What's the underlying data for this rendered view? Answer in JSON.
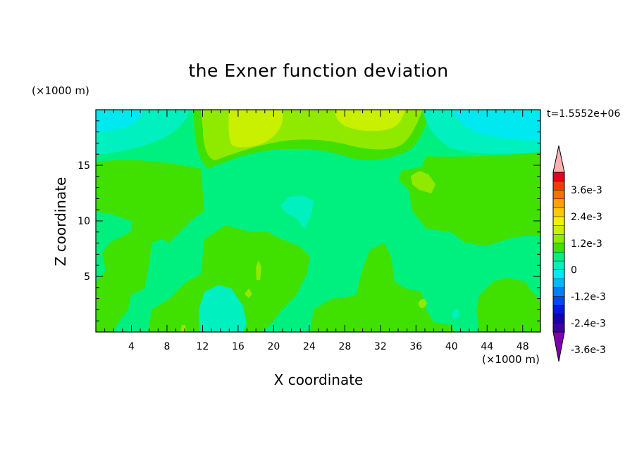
{
  "chart_data": {
    "type": "heatmap",
    "title": "the Exner function deviation",
    "xlabel": "X coordinate",
    "ylabel": "Z coordinate",
    "x_unit": "(×1000 m)",
    "y_unit": "(×1000 m)",
    "time_label": "t=1.5552e+06",
    "xlim": [
      0,
      50
    ],
    "ylim": [
      0,
      20
    ],
    "x_ticks": [
      4,
      8,
      12,
      16,
      20,
      24,
      28,
      32,
      36,
      40,
      44,
      48
    ],
    "y_ticks": [
      5,
      10,
      15
    ],
    "colorbar": {
      "levels": [
        "3.6e-3",
        "2.4e-3",
        "1.2e-3",
        "0",
        "-1.2e-3",
        "-2.4e-3",
        "-3.6e-3"
      ],
      "colors": [
        "#ffb0b0",
        "#e8001e",
        "#f43a00",
        "#f87000",
        "#ffa000",
        "#ffc800",
        "#f0f000",
        "#c8f000",
        "#90ea00",
        "#40e000",
        "#00f080",
        "#00f0c0",
        "#00e8f0",
        "#00b8ff",
        "#0080ff",
        "#0048f0",
        "#0018e0",
        "#1800b0",
        "#3c00a0",
        "#8000b0"
      ]
    },
    "regions": [
      {
        "name": "background",
        "value": -0.0004,
        "color": "#00f080"
      },
      {
        "name": "left-green",
        "value": 0.0003,
        "color": "#40e000"
      },
      {
        "name": "bottom-left-green",
        "value": 0.0003,
        "color": "#40e000"
      },
      {
        "name": "center-green",
        "value": 0.0003,
        "color": "#40e000"
      },
      {
        "name": "right-green",
        "value": 0.0003,
        "color": "#40e000"
      },
      {
        "name": "bottom-right-green",
        "value": 0.0003,
        "color": "#40e000"
      },
      {
        "name": "top-green-band",
        "value": 0.0003,
        "color": "#40e000"
      },
      {
        "name": "top-lime",
        "value": 0.0009,
        "color": "#90ea00"
      },
      {
        "name": "top-yellow-left",
        "value": 0.0014,
        "color": "#c8f000"
      },
      {
        "name": "top-yellow-right",
        "value": 0.0014,
        "color": "#c8f000"
      },
      {
        "name": "right-lime-spot",
        "value": 0.0009,
        "color": "#90ea00"
      },
      {
        "name": "top-left-cyan",
        "value": -0.0011,
        "color": "#00f0c0"
      },
      {
        "name": "top-left-cyan-core",
        "value": -0.0016,
        "color": "#00e8f0"
      },
      {
        "name": "top-right-cyan",
        "value": -0.0011,
        "color": "#00f0c0"
      },
      {
        "name": "top-right-cyan-core",
        "value": -0.0016,
        "color": "#00e8f0"
      },
      {
        "name": "center-cyan-spot",
        "value": -0.0011,
        "color": "#00f0c0"
      },
      {
        "name": "bottom-cyan",
        "value": -0.0011,
        "color": "#00f0c0"
      },
      {
        "name": "bottom-cyan-spot",
        "value": -0.0011,
        "color": "#00f0c0"
      },
      {
        "name": "small-lime-1",
        "value": 0.0009,
        "color": "#90ea00"
      },
      {
        "name": "small-lime-2",
        "value": 0.0009,
        "color": "#90ea00"
      },
      {
        "name": "small-lime-3",
        "value": 0.0009,
        "color": "#90ea00"
      },
      {
        "name": "small-lime-4",
        "value": 0.0009,
        "color": "#90ea00"
      }
    ]
  }
}
